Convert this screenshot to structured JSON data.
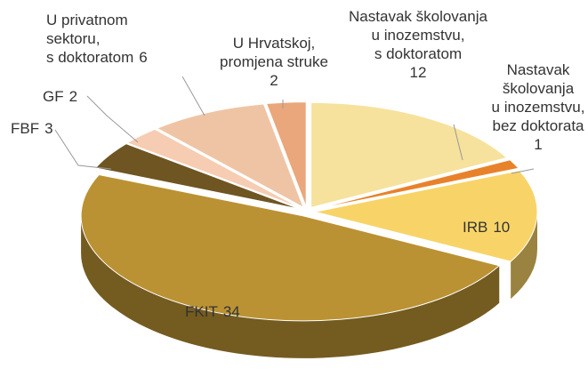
{
  "chart_data": {
    "type": "pie",
    "categories": [
      "Nastavak školovanja\nu inozemstvu,\ns doktoratom",
      "Nastavak\nškolovanja\nu inozemstvu,\nbez doktorata",
      "IRB",
      "FKIT",
      "FBF",
      "GF",
      "U privatnom\nsektoru,\ns doktoratom",
      "U Hrvatskoj,\npromjena struke"
    ],
    "values": [
      12,
      1,
      10,
      34,
      3,
      2,
      6,
      2
    ],
    "colors": [
      "#f6e29c",
      "#e8822a",
      "#f8d468",
      "#bb9233",
      "#6e5522",
      "#f6cdb2",
      "#efc4a5",
      "#eaa77b"
    ]
  }
}
